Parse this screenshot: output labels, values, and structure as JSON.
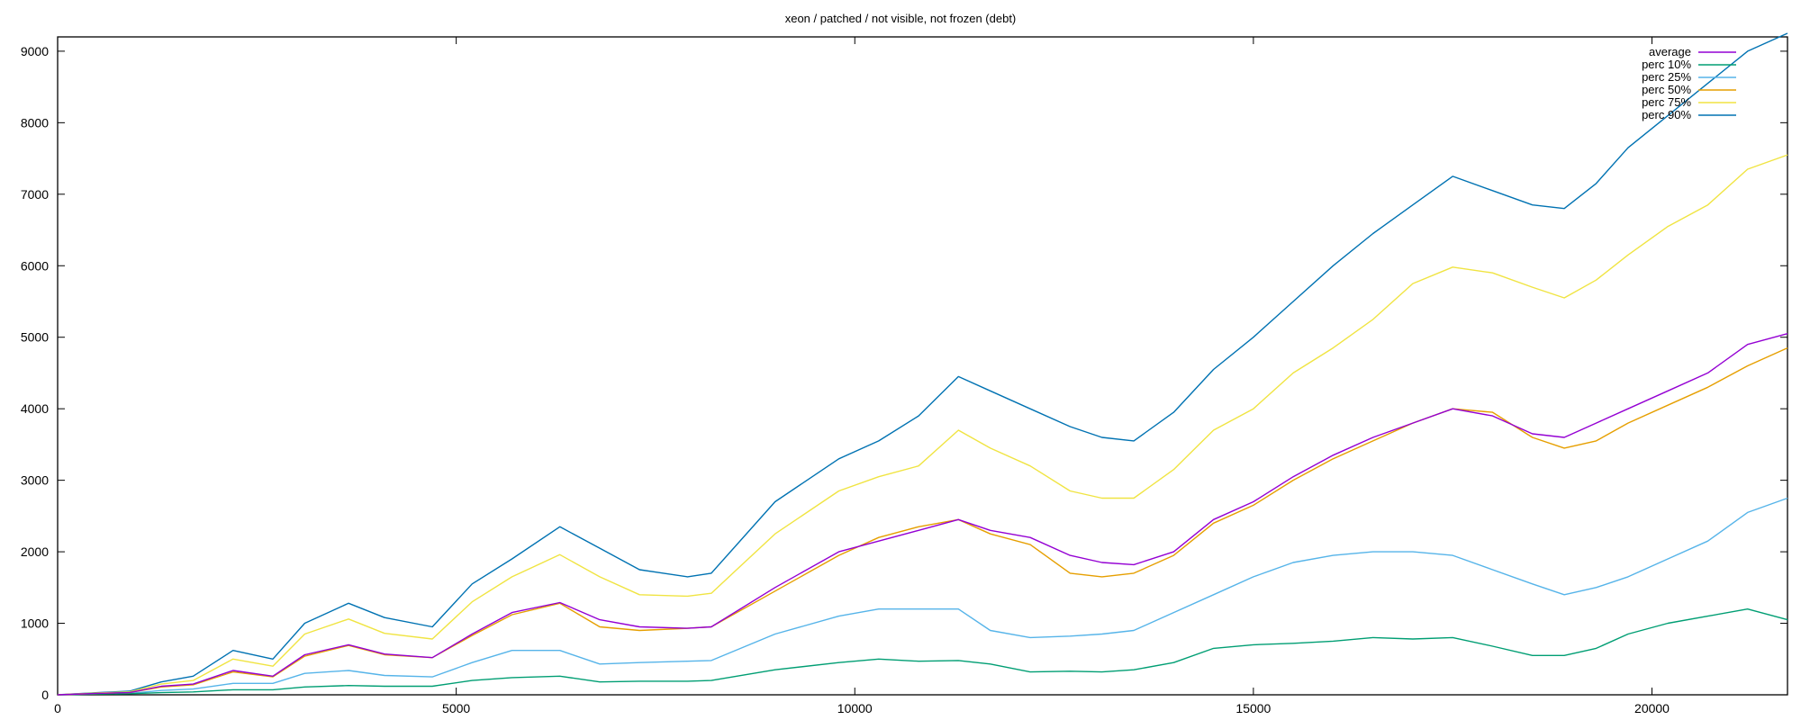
{
  "chart_data": {
    "type": "line",
    "title": "xeon / patched / not visible, not frozen (debt)",
    "xlabel": "",
    "ylabel": "",
    "xlim": [
      0,
      21700
    ],
    "ylim": [
      0,
      9200
    ],
    "xticks": [
      0,
      5000,
      10000,
      15000,
      20000
    ],
    "yticks": [
      0,
      1000,
      2000,
      3000,
      4000,
      5000,
      6000,
      7000,
      8000,
      9000
    ],
    "grid": false,
    "legend_position": "top-right",
    "x": [
      0,
      500,
      900,
      1300,
      1700,
      2200,
      2700,
      3100,
      3650,
      4100,
      4700,
      5200,
      5700,
      6300,
      6800,
      7300,
      7900,
      8200,
      9000,
      9800,
      10300,
      10800,
      11300,
      11700,
      12200,
      12700,
      13100,
      13500,
      14000,
      14500,
      15000,
      15500,
      16000,
      16500,
      17000,
      17500,
      18000,
      18500,
      18900,
      19300,
      19700,
      20200,
      20700,
      21200,
      21700
    ],
    "series": [
      {
        "name": "average",
        "color": "#9400d3",
        "values": [
          0,
          20,
          30,
          120,
          150,
          340,
          260,
          560,
          700,
          570,
          520,
          850,
          1150,
          1290,
          1050,
          950,
          930,
          950,
          1500,
          2000,
          2150,
          2300,
          2450,
          2300,
          2200,
          1950,
          1850,
          1820,
          2000,
          2450,
          2700,
          3050,
          3350,
          3600,
          3800,
          4000,
          3900,
          3650,
          3600,
          3800,
          4000,
          4250,
          4500,
          4900,
          5050
        ]
      },
      {
        "name": "perc 10%",
        "color": "#009e73",
        "values": [
          0,
          10,
          15,
          30,
          40,
          70,
          70,
          110,
          130,
          120,
          120,
          200,
          240,
          260,
          180,
          190,
          190,
          200,
          350,
          450,
          500,
          470,
          480,
          430,
          320,
          330,
          320,
          350,
          450,
          650,
          700,
          720,
          750,
          800,
          780,
          800,
          680,
          550,
          550,
          650,
          850,
          1000,
          1100,
          1200,
          1050
        ]
      },
      {
        "name": "perc 25%",
        "color": "#56b4e9",
        "values": [
          0,
          15,
          20,
          60,
          80,
          160,
          160,
          300,
          340,
          270,
          250,
          450,
          620,
          620,
          430,
          450,
          470,
          480,
          850,
          1100,
          1200,
          1200,
          1200,
          900,
          800,
          820,
          850,
          900,
          1150,
          1400,
          1650,
          1850,
          1950,
          2000,
          2000,
          1950,
          1750,
          1550,
          1400,
          1500,
          1650,
          1900,
          2150,
          2550,
          2750
        ]
      },
      {
        "name": "perc 50%",
        "color": "#e69f00",
        "values": [
          0,
          20,
          30,
          110,
          140,
          320,
          250,
          540,
          690,
          560,
          520,
          830,
          1120,
          1280,
          950,
          900,
          930,
          950,
          1450,
          1950,
          2200,
          2350,
          2450,
          2250,
          2100,
          1700,
          1650,
          1700,
          1950,
          2400,
          2650,
          3000,
          3300,
          3550,
          3800,
          4000,
          3950,
          3600,
          3450,
          3550,
          3800,
          4050,
          4300,
          4600,
          4850
        ]
      },
      {
        "name": "perc 75%",
        "color": "#f0e442",
        "values": [
          0,
          25,
          40,
          150,
          200,
          500,
          400,
          850,
          1060,
          860,
          780,
          1300,
          1650,
          1960,
          1650,
          1400,
          1380,
          1420,
          2250,
          2850,
          3050,
          3200,
          3700,
          3450,
          3200,
          2850,
          2750,
          2750,
          3150,
          3700,
          4000,
          4500,
          4850,
          5250,
          5750,
          5980,
          5900,
          5700,
          5550,
          5800,
          6150,
          6550,
          6850,
          7350,
          7550
        ]
      },
      {
        "name": "perc 90%",
        "color": "#0072b2",
        "values": [
          0,
          30,
          50,
          180,
          260,
          620,
          500,
          1000,
          1280,
          1080,
          950,
          1550,
          1900,
          2350,
          2050,
          1750,
          1650,
          1700,
          2700,
          3300,
          3550,
          3900,
          4450,
          4250,
          4000,
          3750,
          3600,
          3550,
          3950,
          4550,
          5000,
          5500,
          6000,
          6450,
          6850,
          7250,
          7050,
          6850,
          6800,
          7150,
          7650,
          8100,
          8550,
          9000,
          9250
        ]
      }
    ]
  }
}
